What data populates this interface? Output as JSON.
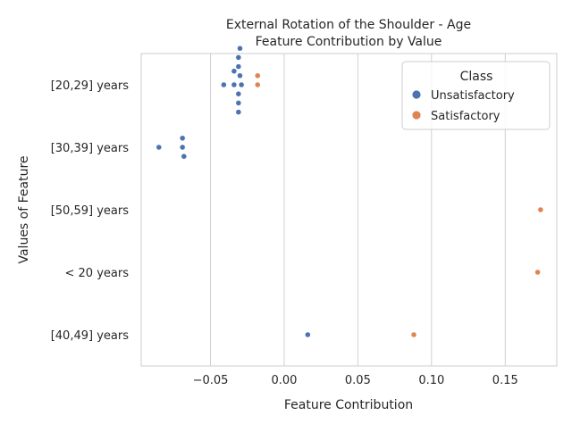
{
  "chart_data": {
    "type": "scatter",
    "title_line1": "External Rotation of the Shoulder - Age",
    "title_line2": "Feature Contribution by Value",
    "xlabel": "Feature Contribution",
    "ylabel": "Values of Feature",
    "xlim": [
      -0.097,
      0.185
    ],
    "x_ticks": [
      -0.05,
      0.0,
      0.05,
      0.1,
      0.15
    ],
    "x_tick_labels": [
      "−0.05",
      "0.00",
      "0.05",
      "0.10",
      "0.15"
    ],
    "categories": [
      "[20,29] years",
      "[30,39] years",
      "[50,59] years",
      "< 20 years",
      "[40,49] years"
    ],
    "grid": "vertical",
    "legend": {
      "title": "Class",
      "placement": "top-right"
    },
    "series": [
      {
        "name": "Unsatisfactory",
        "color": "#4c72b0",
        "points": [
          {
            "category": "[20,29] years",
            "x": -0.029
          },
          {
            "category": "[20,29] years",
            "x": -0.03
          },
          {
            "category": "[20,29] years",
            "x": -0.031
          },
          {
            "category": "[20,29] years",
            "x": -0.034
          },
          {
            "category": "[20,29] years",
            "x": -0.031
          },
          {
            "category": "[20,29] years",
            "x": -0.041
          },
          {
            "category": "[20,29] years",
            "x": -0.034
          },
          {
            "category": "[20,29] years",
            "x": -0.031
          },
          {
            "category": "[20,29] years",
            "x": -0.031
          },
          {
            "category": "[20,29] years",
            "x": -0.031
          },
          {
            "category": "[20,29] years",
            "x": -0.03
          },
          {
            "category": "[30,39] years",
            "x": -0.069
          },
          {
            "category": "[30,39] years",
            "x": -0.085
          },
          {
            "category": "[30,39] years",
            "x": -0.069
          },
          {
            "category": "[30,39] years",
            "x": -0.068
          },
          {
            "category": "[40,49] years",
            "x": 0.016
          }
        ]
      },
      {
        "name": "Satisfactory",
        "color": "#dd8452",
        "points": [
          {
            "category": "[20,29] years",
            "x": -0.018
          },
          {
            "category": "[20,29] years",
            "x": -0.018
          },
          {
            "category": "[50,59] years",
            "x": 0.174
          },
          {
            "category": "< 20 years",
            "x": 0.172
          },
          {
            "category": "[40,49] years",
            "x": 0.088
          }
        ]
      }
    ]
  }
}
